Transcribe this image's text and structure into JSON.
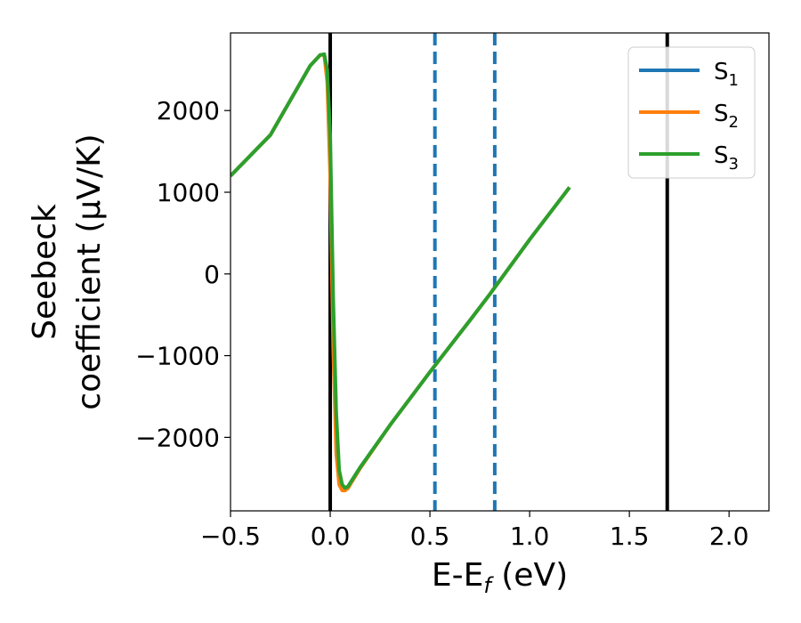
{
  "chart_data": {
    "type": "line",
    "xlabel": "E-E",
    "xlabel_sub": "f",
    "xlabel_unit": " (eV)",
    "ylabel_line1": "Seebeck",
    "ylabel_line2": "coefficient  (μV/K)",
    "xlim": [
      -0.5,
      2.2
    ],
    "ylim": [
      -2900,
      2950
    ],
    "x_ticks": [
      -0.5,
      0.0,
      0.5,
      1.0,
      1.5,
      2.0
    ],
    "x_tick_labels": [
      "−0.5",
      "0.0",
      "0.5",
      "1.0",
      "1.5",
      "2.0"
    ],
    "y_ticks": [
      -2000,
      -1000,
      0,
      1000,
      2000
    ],
    "y_tick_labels": [
      "−2000",
      "−1000",
      "0",
      "1000",
      "2000"
    ],
    "grid": false,
    "legend": "top-right",
    "series": [
      {
        "name": "S",
        "sub": "1",
        "color": "#1f77b4",
        "x": [
          -0.5,
          -0.3,
          -0.1,
          -0.05,
          -0.03,
          -0.015,
          0.0,
          0.015,
          0.03,
          0.045,
          0.06,
          0.075,
          0.09,
          0.1,
          0.15,
          0.3,
          0.5,
          0.7,
          0.8,
          1.0,
          1.2
        ],
        "y": [
          1200,
          1700,
          2550,
          2680,
          2690,
          2450,
          1500,
          -500,
          -1900,
          -2500,
          -2600,
          -2620,
          -2600,
          -2560,
          -2370,
          -1850,
          -1200,
          -570,
          -250,
          420,
          1060
        ]
      },
      {
        "name": "S",
        "sub": "2",
        "color": "#ff7f0e",
        "x": [
          -0.5,
          -0.3,
          -0.1,
          -0.05,
          -0.03,
          -0.015,
          0.0,
          0.015,
          0.03,
          0.045,
          0.06,
          0.075,
          0.09,
          0.1,
          0.15,
          0.3,
          0.5,
          0.7,
          0.8,
          1.0,
          1.2
        ],
        "y": [
          1200,
          1700,
          2550,
          2680,
          2680,
          2350,
          1200,
          -900,
          -2200,
          -2580,
          -2650,
          -2650,
          -2620,
          -2580,
          -2380,
          -1850,
          -1200,
          -570,
          -250,
          420,
          1060
        ]
      },
      {
        "name": "S",
        "sub": "3",
        "color": "#2ca02c",
        "x": [
          -0.5,
          -0.3,
          -0.1,
          -0.05,
          -0.03,
          -0.015,
          0.0,
          0.015,
          0.03,
          0.045,
          0.06,
          0.075,
          0.09,
          0.1,
          0.15,
          0.3,
          0.5,
          0.7,
          0.8,
          1.0,
          1.2
        ],
        "y": [
          1200,
          1700,
          2550,
          2680,
          2690,
          2500,
          1700,
          -300,
          -1700,
          -2400,
          -2580,
          -2620,
          -2600,
          -2560,
          -2370,
          -1850,
          -1200,
          -570,
          -250,
          420,
          1060
        ]
      }
    ],
    "vlines": [
      {
        "x": 0.0,
        "color": "#000000",
        "style": "solid"
      },
      {
        "x": 1.69,
        "color": "#000000",
        "style": "solid"
      },
      {
        "x": 0.525,
        "color": "#1f77b4",
        "style": "dashed"
      },
      {
        "x": 0.825,
        "color": "#1f77b4",
        "style": "dashed"
      }
    ]
  }
}
